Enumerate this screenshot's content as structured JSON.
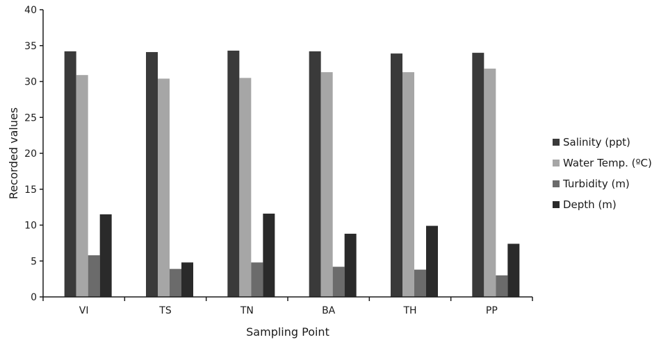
{
  "chart_data": {
    "type": "bar",
    "title": "",
    "xlabel": "Sampling Point",
    "ylabel": "Recorded values",
    "categories": [
      "VI",
      "TS",
      "TN",
      "BA",
      "TH",
      "PP"
    ],
    "ylim": [
      0,
      40
    ],
    "yticks": [
      0,
      5,
      10,
      15,
      20,
      25,
      30,
      35,
      40
    ],
    "grid": false,
    "legend_position": "right",
    "series": [
      {
        "name": "Salinity (ppt)",
        "color": "#3a3a3a",
        "values": [
          34.2,
          34.1,
          34.3,
          34.2,
          33.9,
          34.0
        ]
      },
      {
        "name": "Water Temp. (ºC)",
        "color": "#a6a6a6",
        "values": [
          30.9,
          30.4,
          30.5,
          31.3,
          31.3,
          31.8
        ]
      },
      {
        "name": "Turbidity (m)",
        "color": "#6b6b6b",
        "values": [
          5.8,
          3.9,
          4.8,
          4.2,
          3.8,
          3.0
        ]
      },
      {
        "name": "Depth (m)",
        "color": "#2a2a2a",
        "values": [
          11.5,
          4.8,
          11.6,
          8.8,
          9.9,
          7.4
        ]
      }
    ]
  }
}
